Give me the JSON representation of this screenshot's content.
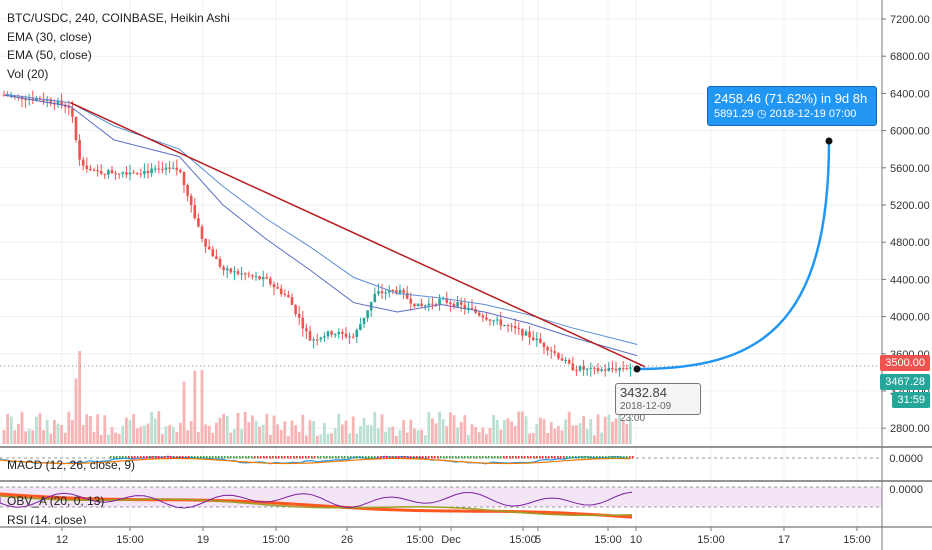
{
  "legend": {
    "title": "BTC/USDC, 240, COINBASE, Heikin Ashi",
    "ema30": "EMA (30, close)",
    "ema50": "EMA (50, close)",
    "vol": "Vol (20)"
  },
  "macd_label": "MACD (12, 26, close, 9)",
  "obv_label": "OBV_A (20, 0, 13)",
  "rsi_label": "RSI (14, close)",
  "badges": {
    "price_red": "3500.00",
    "price_green": "3467.28",
    "timer": "31:59",
    "macd_zero": "0.0000",
    "obv_zero": "0.0000"
  },
  "projection": {
    "line1": "2458.46 (71.62%) in 9d 8h",
    "line2_price": "5891.29",
    "line2_date": "2018-12-19  07:00"
  },
  "price_tooltip": {
    "price": "3432.84",
    "date": "2018-12-09 23:00"
  },
  "colors": {
    "up": "#26a69a",
    "down": "#ef5350",
    "ema30": "#5b6ec2",
    "ema50": "#5b8fd6",
    "trendline": "#b71c1c",
    "projection": "#2196F3",
    "vol_up": "#b9e0d0",
    "vol_down": "#f8b4b4"
  },
  "chart_data": {
    "type": "candlestick",
    "symbol": "BTC/USDC",
    "interval": "240",
    "exchange": "COINBASE",
    "style": "Heikin Ashi",
    "ylim": [
      2600,
      7400
    ],
    "y_ticks": [
      "7200.00",
      "6800.00",
      "6400.00",
      "6000.00",
      "5600.00",
      "5200.00",
      "4800.00",
      "4400.00",
      "4000.00",
      "3600.00",
      "3200.00",
      "2800.00"
    ],
    "x_ticks": [
      "12",
      "15:00",
      "19",
      "15:00",
      "26",
      "15:00",
      "Dec",
      "15:00",
      "5",
      "15:00",
      "10",
      "15:00",
      "17",
      "15:00"
    ],
    "price_path": [
      {
        "t": "Nov 11",
        "close": 6380
      },
      {
        "t": "Nov 12",
        "close": 6350
      },
      {
        "t": "Nov 13",
        "close": 6330
      },
      {
        "t": "Nov 14",
        "close": 6250
      },
      {
        "t": "Nov 14 late",
        "close": 5700
      },
      {
        "t": "Nov 15",
        "close": 5550
      },
      {
        "t": "Nov 17",
        "close": 5560
      },
      {
        "t": "Nov 19",
        "close": 5580
      },
      {
        "t": "Nov 20",
        "close": 4850
      },
      {
        "t": "Nov 21",
        "close": 4500
      },
      {
        "t": "Nov 22",
        "close": 4450
      },
      {
        "t": "Nov 23",
        "close": 4390
      },
      {
        "t": "Nov 24",
        "close": 4200
      },
      {
        "t": "Nov 25",
        "close": 3750
      },
      {
        "t": "Nov 26",
        "close": 3830
      },
      {
        "t": "Nov 27",
        "close": 3780
      },
      {
        "t": "Nov 28",
        "close": 4250
      },
      {
        "t": "Nov 29",
        "close": 4280
      },
      {
        "t": "Nov 30",
        "close": 4100
      },
      {
        "t": "Dec 1",
        "close": 4180
      },
      {
        "t": "Dec 2",
        "close": 4110
      },
      {
        "t": "Dec 3",
        "close": 4000
      },
      {
        "t": "Dec 4",
        "close": 3900
      },
      {
        "t": "Dec 5",
        "close": 3800
      },
      {
        "t": "Dec 6",
        "close": 3650
      },
      {
        "t": "Dec 7",
        "close": 3450
      },
      {
        "t": "Dec 8",
        "close": 3420
      },
      {
        "t": "Dec 9",
        "close": 3440
      },
      {
        "t": "Dec 10",
        "close": 3467
      }
    ],
    "series": [
      {
        "name": "EMA (30, close)",
        "points": [
          {
            "t": "Nov 11",
            "v": 6380
          },
          {
            "t": "Nov 14",
            "v": 6260
          },
          {
            "t": "Nov 16",
            "v": 5900
          },
          {
            "t": "Nov 19",
            "v": 5720
          },
          {
            "t": "Nov 21",
            "v": 5200
          },
          {
            "t": "Nov 23",
            "v": 4830
          },
          {
            "t": "Nov 25",
            "v": 4500
          },
          {
            "t": "Nov 27",
            "v": 4150
          },
          {
            "t": "Nov 29",
            "v": 4050
          },
          {
            "t": "Dec 1",
            "v": 4130
          },
          {
            "t": "Dec 3",
            "v": 4050
          },
          {
            "t": "Dec 5",
            "v": 3930
          },
          {
            "t": "Dec 7",
            "v": 3780
          },
          {
            "t": "Dec 10",
            "v": 3580
          }
        ]
      },
      {
        "name": "EMA (50, close)",
        "points": [
          {
            "t": "Nov 11",
            "v": 6390
          },
          {
            "t": "Nov 14",
            "v": 6300
          },
          {
            "t": "Nov 16",
            "v": 6050
          },
          {
            "t": "Nov 19",
            "v": 5800
          },
          {
            "t": "Nov 21",
            "v": 5400
          },
          {
            "t": "Nov 23",
            "v": 5050
          },
          {
            "t": "Nov 25",
            "v": 4750
          },
          {
            "t": "Nov 27",
            "v": 4420
          },
          {
            "t": "Nov 29",
            "v": 4250
          },
          {
            "t": "Dec 1",
            "v": 4200
          },
          {
            "t": "Dec 3",
            "v": 4130
          },
          {
            "t": "Dec 5",
            "v": 4020
          },
          {
            "t": "Dec 7",
            "v": 3880
          },
          {
            "t": "Dec 10",
            "v": 3700
          }
        ]
      }
    ],
    "trendline": [
      {
        "t": "Nov 14",
        "v": 6300
      },
      {
        "t": "Dec 10",
        "v": 3460
      }
    ],
    "projection_path": [
      {
        "t": "Dec 10",
        "v": 3467
      },
      {
        "t": "Dec 19 07:00",
        "v": 5891.29
      }
    ],
    "current_price": 3467.28,
    "marked_price": 3500.0
  }
}
